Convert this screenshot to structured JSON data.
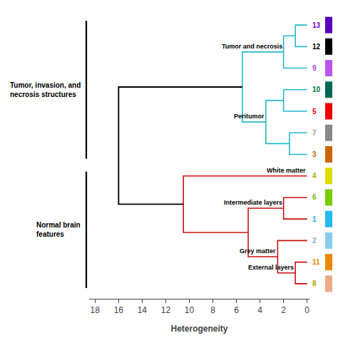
{
  "chart_data": {
    "type": "dendrogram",
    "xlabel": "Heterogeneity",
    "xlim": [
      18.5,
      -0.2
    ],
    "xticks": [
      0,
      2,
      4,
      6,
      8,
      10,
      12,
      14,
      16,
      18
    ],
    "grid": false,
    "leaves": [
      "13",
      "12",
      "9",
      "10",
      "5",
      "7",
      "3",
      "4",
      "6",
      "1",
      "2",
      "11",
      "8"
    ],
    "leaf_colors": [
      "#5500bb",
      "#000000",
      "#bb55ee",
      "#006655",
      "#ee0000",
      "#888888",
      "#cc6600",
      "#dddd00",
      "#77cc00",
      "#22bbee",
      "#88ccee",
      "#ee8800",
      "#eeaa88"
    ],
    "leaf_label_colors": [
      "#7700bb",
      "#000000",
      "#aa44cc",
      "#007744",
      "#dd0000",
      "#999999",
      "#cc6600",
      "#aaaa00",
      "#77bb00",
      "#22aadd",
      "#77aacc",
      "#ee8800",
      "#aaaa00"
    ],
    "merges": [
      {
        "children": [
          "13",
          "12"
        ],
        "height": 1,
        "color": "#22bbcc"
      },
      {
        "children": [
          0,
          "9"
        ],
        "height": 2,
        "color": "#22bbcc"
      },
      {
        "children": [
          "10",
          "5"
        ],
        "height": 2,
        "color": "#22bbcc"
      },
      {
        "children": [
          "7",
          "3"
        ],
        "height": 1.5,
        "color": "#22bbcc"
      },
      {
        "children": [
          2,
          3
        ],
        "height": 3.5,
        "color": "#22bbcc"
      },
      {
        "children": [
          1,
          4
        ],
        "height": 5.5,
        "color": "#22bbcc"
      },
      {
        "children": [
          "6",
          "1"
        ],
        "height": 2,
        "color": "#cc1111"
      },
      {
        "children": [
          "11",
          "8"
        ],
        "height": 1,
        "color": "#cc1111"
      },
      {
        "children": [
          "2",
          7
        ],
        "height": 2.5,
        "color": "#cc1111"
      },
      {
        "children": [
          6,
          8
        ],
        "height": 5,
        "color": "#cc1111"
      },
      {
        "children": [
          "4",
          9
        ],
        "height": 10.5,
        "color": "#cc1111"
      },
      {
        "children": [
          5,
          10
        ],
        "height": 16,
        "color": "#000000"
      }
    ],
    "annotations": [
      {
        "text": "Tumor and necrosis",
        "node": 1
      },
      {
        "text": "Peritumor",
        "node": 4
      },
      {
        "text": "White matter",
        "node": "4"
      },
      {
        "text": "Intermediate layers",
        "node": 6
      },
      {
        "text": "Grey matter",
        "node": 8
      },
      {
        "text": "External layers",
        "node": 7
      }
    ],
    "groups": [
      {
        "label": "Tumor, invasion, and\nnecrosis structures",
        "first": "13",
        "last": "3"
      },
      {
        "label": "Normal brain\nfeatures",
        "first": "4",
        "last": "8"
      }
    ]
  }
}
